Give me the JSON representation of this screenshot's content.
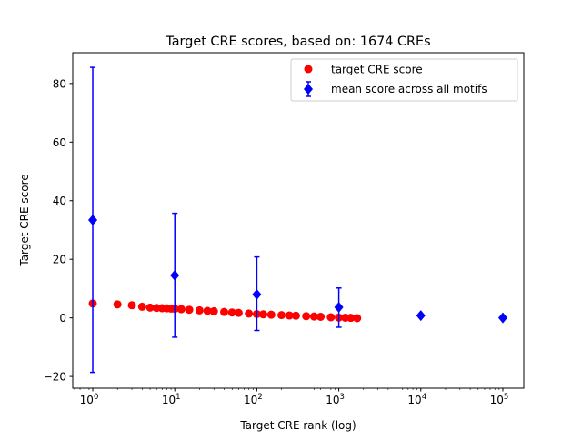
{
  "chart_data": {
    "type": "scatter",
    "title": "Target CRE scores, based on: 1674 CREs",
    "xlabel": "Target CRE rank (log)",
    "ylabel": "Target CRE score",
    "xscale": "log",
    "xlim": [
      0.57,
      180000
    ],
    "ylim": [
      -24,
      90.5
    ],
    "x_ticks": [
      {
        "value": 1,
        "base": "10",
        "exp": "0"
      },
      {
        "value": 10,
        "base": "10",
        "exp": "1"
      },
      {
        "value": 100,
        "base": "10",
        "exp": "2"
      },
      {
        "value": 1000,
        "base": "10",
        "exp": "3"
      },
      {
        "value": 10000,
        "base": "10",
        "exp": "4"
      },
      {
        "value": 100000,
        "base": "10",
        "exp": "5"
      }
    ],
    "y_ticks": [
      -20,
      0,
      20,
      40,
      60,
      80
    ],
    "grid": false,
    "legend_position": "top-right",
    "series": [
      {
        "name": "target CRE score",
        "marker": "circle",
        "color": "#ff0000",
        "x": [
          1,
          2,
          3,
          4,
          5,
          6,
          7,
          8,
          9,
          10,
          12,
          15,
          20,
          25,
          30,
          40,
          50,
          60,
          80,
          100,
          120,
          150,
          200,
          250,
          300,
          400,
          500,
          600,
          800,
          1000,
          1200,
          1400,
          1674
        ],
        "y": [
          4.9,
          4.6,
          4.3,
          3.8,
          3.5,
          3.4,
          3.3,
          3.25,
          3.15,
          3.1,
          2.96,
          2.78,
          2.56,
          2.38,
          2.24,
          2.02,
          1.84,
          1.7,
          1.47,
          1.3,
          1.2,
          1.09,
          0.94,
          0.82,
          0.73,
          0.58,
          0.46,
          0.37,
          0.22,
          0.1,
          0.05,
          0.0,
          -0.1
        ]
      },
      {
        "name": "mean score across all motifs",
        "marker": "diamond",
        "color": "#0000ff",
        "x": [
          1,
          10,
          100,
          1000,
          10000,
          100000
        ],
        "y": [
          33.4,
          14.5,
          8.0,
          3.6,
          0.8,
          0.0
        ],
        "err_low": [
          -18.6,
          -6.6,
          -4.3,
          -3.2,
          0.8,
          0.0
        ],
        "err_high": [
          85.5,
          35.7,
          20.8,
          10.2,
          0.8,
          0.0
        ]
      }
    ]
  }
}
